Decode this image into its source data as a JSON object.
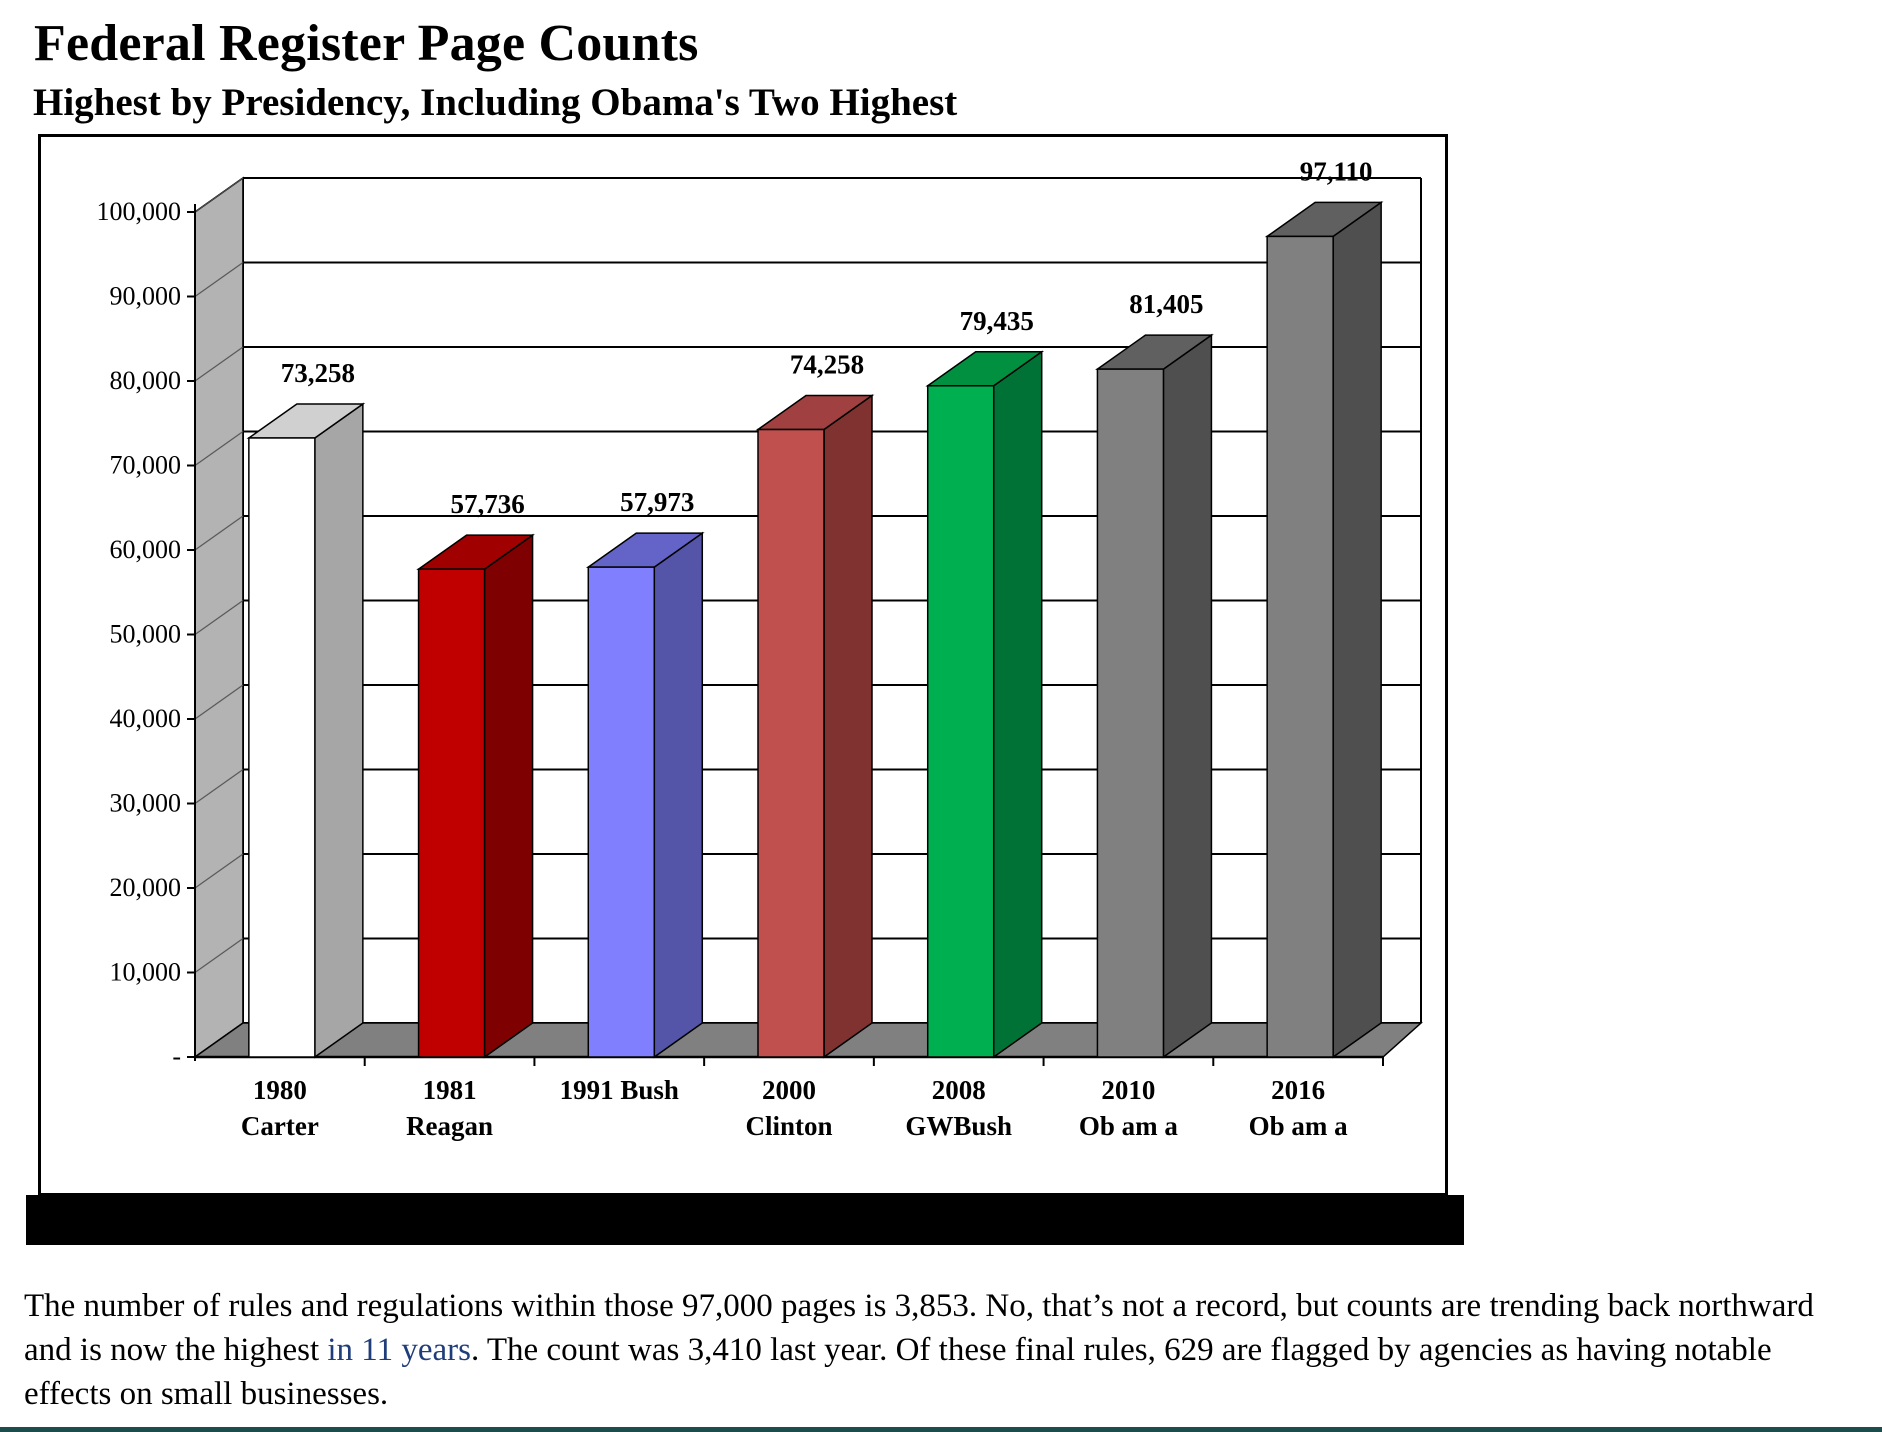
{
  "title": "Federal Register Page Counts",
  "subtitle": "Highest by Presidency, Including Obama's Two Highest",
  "caption": {
    "before_link": "The number of rules and regulations within those 97,000 pages is 3,853. No, that’s not a record, but counts are trending back northward and is now the highest ",
    "link_text": "in 11 years",
    "after_link": ". The count was 3,410 last year.  Of these final rules, 629 are flagged by agencies as having notable effects on small businesses."
  },
  "chart_data": {
    "type": "bar",
    "title": "Federal Register Page Counts",
    "subtitle": "Highest by Presidency, Including Obama's Two Highest",
    "categories": [
      [
        "1980",
        "Carter"
      ],
      [
        "1981",
        "Reagan"
      ],
      [
        "1991 Bush"
      ],
      [
        "2000",
        "Clinton"
      ],
      [
        "2008",
        "GWBush"
      ],
      [
        "2010",
        "Ob am a"
      ],
      [
        "2016",
        "Ob am a"
      ]
    ],
    "values": [
      73258,
      57736,
      57973,
      74258,
      79435,
      81405,
      97110
    ],
    "value_labels": [
      "73,258",
      "57,736",
      "57,973",
      "74,258",
      "79,435",
      "81,405",
      "97,110"
    ],
    "colors": {
      "front": [
        "#ffffff",
        "#c00000",
        "#8080ff",
        "#c0504d",
        "#00b050",
        "#808080",
        "#808080"
      ],
      "side": [
        "#a6a6a6",
        "#7f0000",
        "#5454a8",
        "#7f3230",
        "#007236",
        "#4f4f4f",
        "#4f4f4f"
      ],
      "top": [
        "#d0d0d0",
        "#a00000",
        "#6464c8",
        "#a04040",
        "#009040",
        "#606060",
        "#606060"
      ]
    },
    "y_ticks": [
      "-",
      "10,000",
      "20,000",
      "30,000",
      "40,000",
      "50,000",
      "60,000",
      "70,000",
      "80,000",
      "90,000",
      "100,000"
    ],
    "ylim": [
      0,
      100000
    ],
    "grid": true,
    "three_d": true,
    "legend": "none",
    "xlabel": "",
    "ylabel": ""
  }
}
